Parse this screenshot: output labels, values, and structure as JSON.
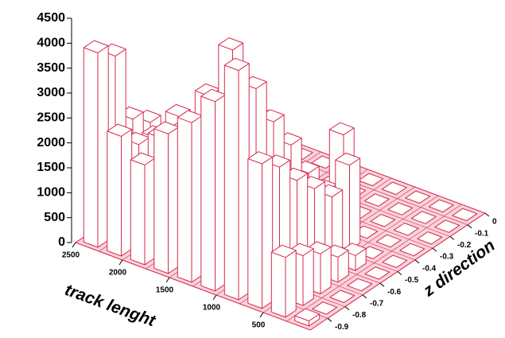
{
  "chart_data": {
    "type": "lego",
    "x_label": "track lenght",
    "z_label": "z direction",
    "color": "#d6284b",
    "xbins": [
      0,
      250,
      500,
      750,
      1000,
      1250,
      1500,
      1750,
      2000,
      2250,
      2500
    ],
    "zbins": [
      -1,
      -0.9,
      -0.8,
      -0.7,
      -0.6,
      -0.5,
      -0.4,
      -0.3,
      -0.2,
      -0.1,
      0
    ],
    "xticks": [
      2500,
      2000,
      1500,
      1000,
      500
    ],
    "zticks": [
      0,
      -0.1,
      -0.2,
      -0.3,
      -0.4,
      -0.5,
      -0.6,
      -0.7,
      -0.8,
      -0.9
    ],
    "ylim": [
      0,
      4500
    ],
    "yticks": [
      0,
      500,
      1000,
      1500,
      2000,
      2500,
      3000,
      3500,
      4000,
      4500
    ],
    "values": [
      [
        100,
        0,
        0,
        0,
        0,
        0,
        0,
        0,
        0,
        0
      ],
      [
        1200,
        1000,
        800,
        500,
        300,
        0,
        0,
        0,
        0,
        0
      ],
      [
        2900,
        2600,
        2100,
        1700,
        1300,
        1700,
        0,
        0,
        0,
        0
      ],
      [
        4600,
        4000,
        3100,
        2400,
        1600,
        1000,
        1900,
        0,
        0,
        0
      ],
      [
        3800,
        4600,
        3300,
        2700,
        1800,
        900,
        300,
        0,
        0,
        0
      ],
      [
        3200,
        3500,
        2900,
        2500,
        1600,
        700,
        200,
        0,
        0,
        0
      ],
      [
        2800,
        2600,
        2400,
        2100,
        1300,
        500,
        0,
        0,
        0,
        0
      ],
      [
        2000,
        2300,
        2500,
        1800,
        1000,
        400,
        0,
        0,
        0,
        0
      ],
      [
        2400,
        2000,
        1900,
        1500,
        900,
        300,
        0,
        0,
        0,
        0
      ],
      [
        3900,
        3600,
        2100,
        1800,
        1200,
        600,
        0,
        0,
        0,
        0
      ]
    ]
  }
}
